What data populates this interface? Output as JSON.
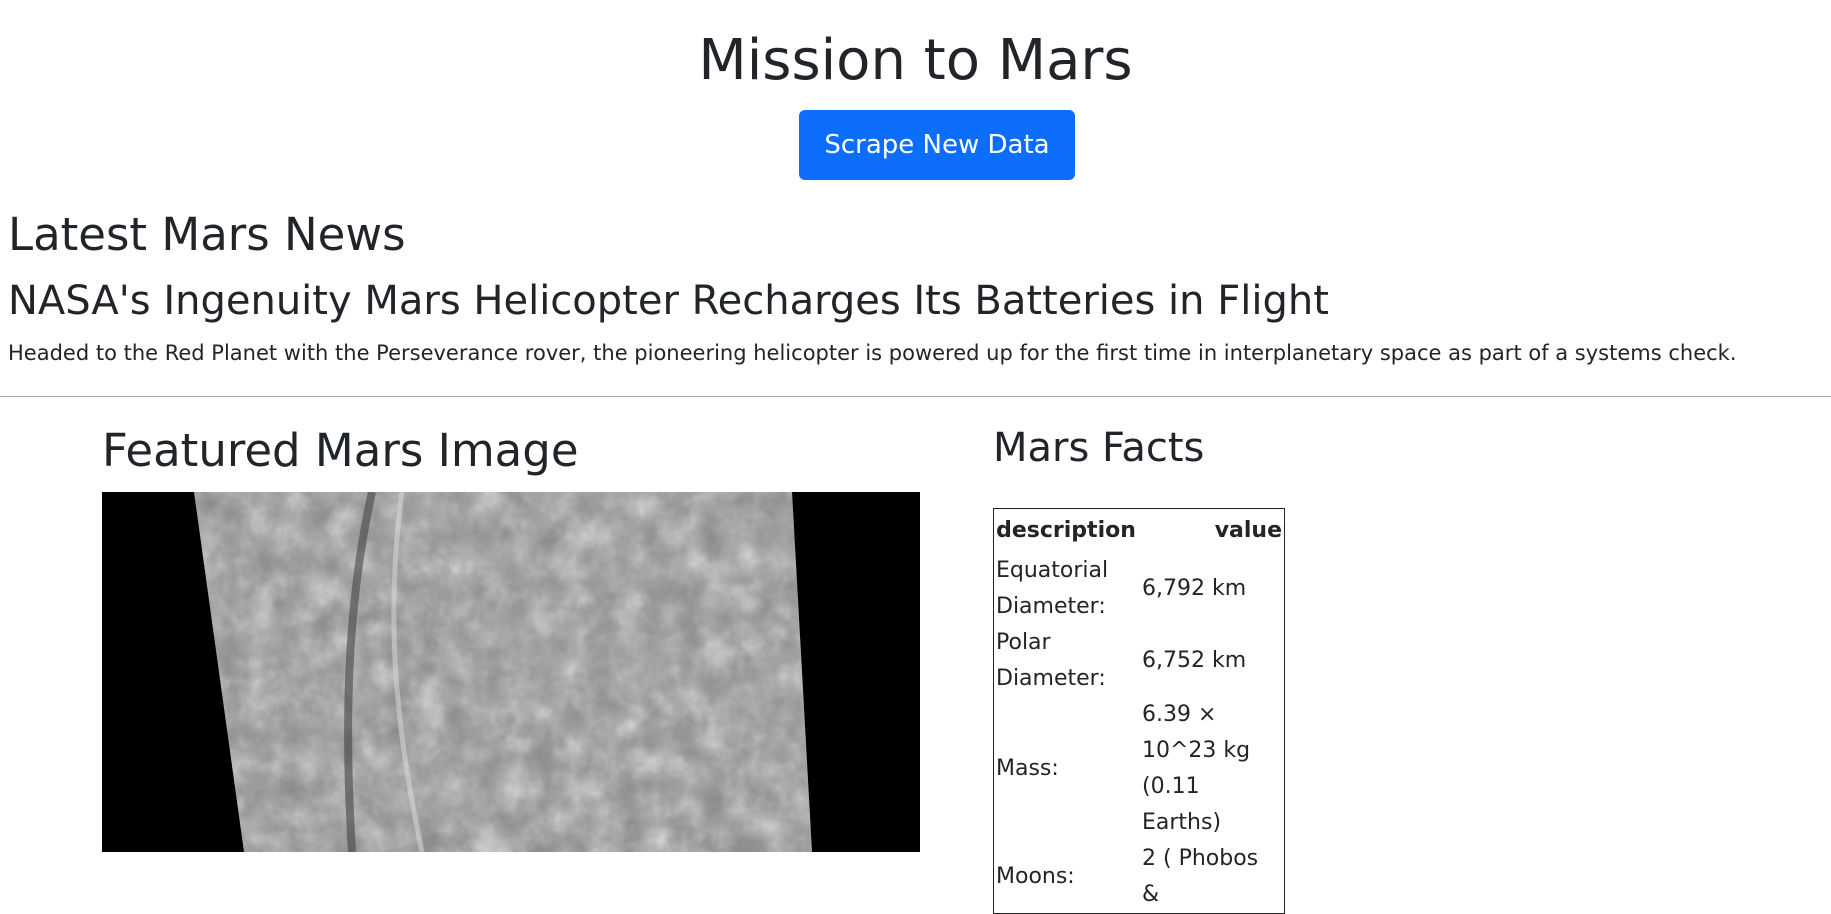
{
  "header": {
    "title": "Mission to Mars",
    "button": "Scrape New Data"
  },
  "news": {
    "heading": "Latest Mars News",
    "title": "NASA's Ingenuity Mars Helicopter Recharges Its Batteries in Flight",
    "paragraph": "Headed to the Red Planet with the Perseverance rover, the pioneering helicopter is powered up for the first time in interplanetary space as part of a systems check."
  },
  "featured": {
    "heading": "Featured Mars Image"
  },
  "facts": {
    "heading": "Mars Facts",
    "table": {
      "columns": [
        "description",
        "value"
      ],
      "rows": [
        [
          "Equatorial Diameter:",
          "6,792 km"
        ],
        [
          "Polar Diameter:",
          "6,752 km"
        ],
        [
          "Mass:",
          "6.39 × 10^23 kg (0.11 Earths)"
        ],
        [
          "Moons:",
          "2 ( Phobos &"
        ]
      ]
    }
  }
}
